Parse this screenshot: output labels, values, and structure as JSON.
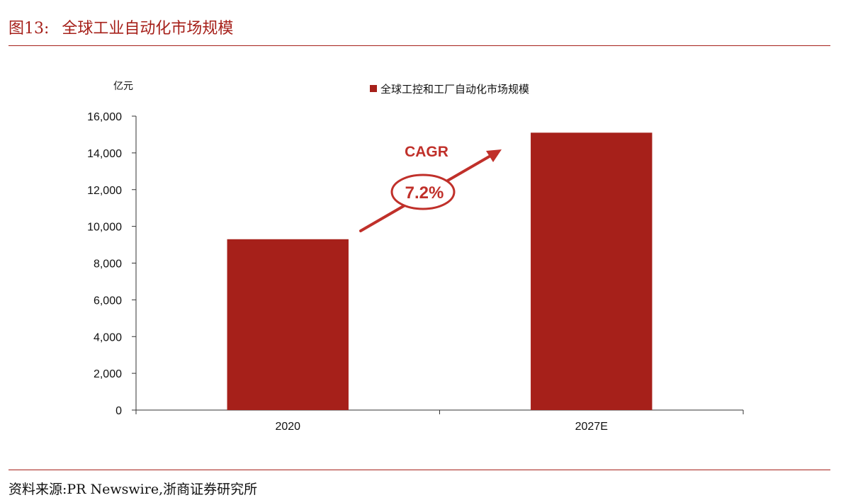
{
  "header": {
    "figure_number": "图13:",
    "figure_title": "全球工业自动化市场规模"
  },
  "footer": {
    "source": "资料来源:PR Newswire,浙商证券研究所"
  },
  "chart_data": {
    "type": "bar",
    "title": "",
    "unit_label": "亿元",
    "categories": [
      "2020",
      "2027E"
    ],
    "series": [
      {
        "name": "全球工控和工厂自动化市场规模",
        "values": [
          9300,
          15100
        ],
        "color": "#a6201a"
      }
    ],
    "ylim": [
      0,
      16000
    ],
    "yticks": [
      0,
      2000,
      4000,
      6000,
      8000,
      10000,
      12000,
      14000,
      16000
    ],
    "ytick_labels": [
      "0",
      "2,000",
      "4,000",
      "6,000",
      "8,000",
      "10,000",
      "12,000",
      "14,000",
      "16,000"
    ],
    "grid": false,
    "legend_position": "top-center",
    "annotation": {
      "label": "CAGR",
      "value": "7.2%",
      "color": "#c0302a"
    }
  }
}
